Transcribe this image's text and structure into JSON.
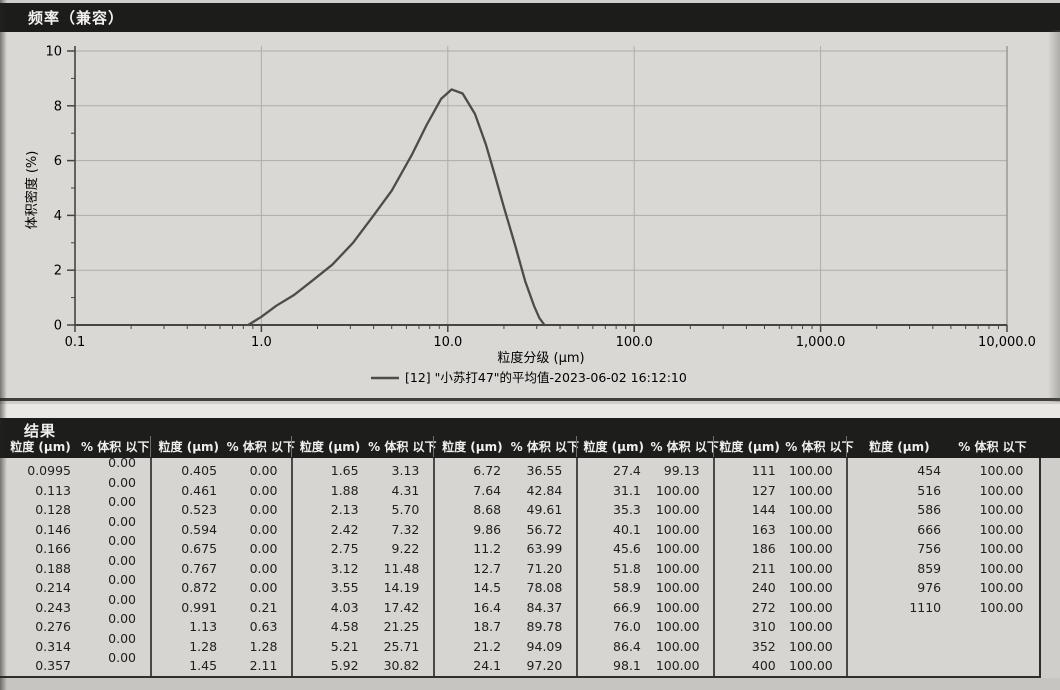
{
  "chart": {
    "title": "频率（兼容）"
  },
  "chart_data": {
    "type": "line",
    "title": "频率（兼容）",
    "xlabel": "粒度分级 (μm)",
    "ylabel": "体积密度 (%)",
    "x_scale": "log",
    "xlim": [
      0.1,
      10000
    ],
    "ylim": [
      0,
      10
    ],
    "grid": true,
    "legend_position": "bottom",
    "xtick_values": [
      0.1,
      1,
      10,
      100,
      1000,
      10000
    ],
    "xtick_labels": [
      "0.1",
      "1.0",
      "10.0",
      "100.0",
      "1,000.0",
      "10,000.0"
    ],
    "ytick_values": [
      0,
      2,
      4,
      6,
      8,
      10
    ],
    "ytick_labels": [
      "0",
      "2",
      "4",
      "6",
      "8",
      "10"
    ],
    "series": [
      {
        "name": "[12] \"小苏打47\"的平均值-2023-06-02 16:12:10",
        "points": [
          [
            0.85,
            0
          ],
          [
            1.0,
            0.3
          ],
          [
            1.2,
            0.7
          ],
          [
            1.5,
            1.1
          ],
          [
            1.9,
            1.65
          ],
          [
            2.4,
            2.2
          ],
          [
            3.1,
            3.0
          ],
          [
            4.0,
            4.0
          ],
          [
            5.0,
            4.9
          ],
          [
            6.4,
            6.2
          ],
          [
            7.7,
            7.3
          ],
          [
            9.2,
            8.25
          ],
          [
            10.5,
            8.6
          ],
          [
            12,
            8.45
          ],
          [
            14,
            7.7
          ],
          [
            16,
            6.6
          ],
          [
            18,
            5.4
          ],
          [
            20,
            4.3
          ],
          [
            23,
            2.9
          ],
          [
            26,
            1.6
          ],
          [
            29,
            0.7
          ],
          [
            31,
            0.25
          ],
          [
            33,
            0
          ]
        ]
      }
    ]
  },
  "results": {
    "section_title": "结果",
    "col_size": "粒度 (μm)",
    "col_pct": "% 体积 以下",
    "groups": [
      {
        "rows": [
          [
            "0.0995",
            "0.00"
          ],
          [
            "0.113",
            "0.00"
          ],
          [
            "0.128",
            "0.00"
          ],
          [
            "0.146",
            "0.00"
          ],
          [
            "0.166",
            "0.00"
          ],
          [
            "0.188",
            "0.00"
          ],
          [
            "0.214",
            "0.00"
          ],
          [
            "0.243",
            "0.00"
          ],
          [
            "0.276",
            "0.00"
          ],
          [
            "0.314",
            "0.00"
          ],
          [
            "0.357",
            "0.00"
          ]
        ]
      },
      {
        "rows": [
          [
            "0.405",
            "0.00"
          ],
          [
            "0.461",
            "0.00"
          ],
          [
            "0.523",
            "0.00"
          ],
          [
            "0.594",
            "0.00"
          ],
          [
            "0.675",
            "0.00"
          ],
          [
            "0.767",
            "0.00"
          ],
          [
            "0.872",
            "0.00"
          ],
          [
            "0.991",
            "0.21"
          ],
          [
            "1.13",
            "0.63"
          ],
          [
            "1.28",
            "1.28"
          ],
          [
            "1.45",
            "2.11"
          ]
        ]
      },
      {
        "rows": [
          [
            "1.65",
            "3.13"
          ],
          [
            "1.88",
            "4.31"
          ],
          [
            "2.13",
            "5.70"
          ],
          [
            "2.42",
            "7.32"
          ],
          [
            "2.75",
            "9.22"
          ],
          [
            "3.12",
            "11.48"
          ],
          [
            "3.55",
            "14.19"
          ],
          [
            "4.03",
            "17.42"
          ],
          [
            "4.58",
            "21.25"
          ],
          [
            "5.21",
            "25.71"
          ],
          [
            "5.92",
            "30.82"
          ]
        ]
      },
      {
        "rows": [
          [
            "6.72",
            "36.55"
          ],
          [
            "7.64",
            "42.84"
          ],
          [
            "8.68",
            "49.61"
          ],
          [
            "9.86",
            "56.72"
          ],
          [
            "11.2",
            "63.99"
          ],
          [
            "12.7",
            "71.20"
          ],
          [
            "14.5",
            "78.08"
          ],
          [
            "16.4",
            "84.37"
          ],
          [
            "18.7",
            "89.78"
          ],
          [
            "21.2",
            "94.09"
          ],
          [
            "24.1",
            "97.20"
          ]
        ]
      },
      {
        "rows": [
          [
            "27.4",
            "99.13"
          ],
          [
            "31.1",
            "100.00"
          ],
          [
            "35.3",
            "100.00"
          ],
          [
            "40.1",
            "100.00"
          ],
          [
            "45.6",
            "100.00"
          ],
          [
            "51.8",
            "100.00"
          ],
          [
            "58.9",
            "100.00"
          ],
          [
            "66.9",
            "100.00"
          ],
          [
            "76.0",
            "100.00"
          ],
          [
            "86.4",
            "100.00"
          ],
          [
            "98.1",
            "100.00"
          ]
        ]
      },
      {
        "rows": [
          [
            "111",
            "100.00"
          ],
          [
            "127",
            "100.00"
          ],
          [
            "144",
            "100.00"
          ],
          [
            "163",
            "100.00"
          ],
          [
            "186",
            "100.00"
          ],
          [
            "211",
            "100.00"
          ],
          [
            "240",
            "100.00"
          ],
          [
            "272",
            "100.00"
          ],
          [
            "310",
            "100.00"
          ],
          [
            "352",
            "100.00"
          ],
          [
            "400",
            "100.00"
          ]
        ]
      },
      {
        "rows": [
          [
            "454",
            "100.00"
          ],
          [
            "516",
            "100.00"
          ],
          [
            "586",
            "100.00"
          ],
          [
            "666",
            "100.00"
          ],
          [
            "756",
            "100.00"
          ],
          [
            "859",
            "100.00"
          ],
          [
            "976",
            "100.00"
          ],
          [
            "1110",
            "100.00"
          ]
        ]
      }
    ]
  }
}
